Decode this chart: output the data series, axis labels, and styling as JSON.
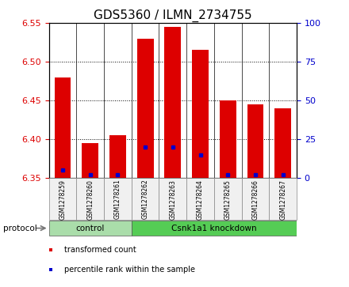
{
  "title": "GDS5360 / ILMN_2734755",
  "samples": [
    "GSM1278259",
    "GSM1278260",
    "GSM1278261",
    "GSM1278262",
    "GSM1278263",
    "GSM1278264",
    "GSM1278265",
    "GSM1278266",
    "GSM1278267"
  ],
  "transformed_counts": [
    6.48,
    6.395,
    6.405,
    6.53,
    6.545,
    6.515,
    6.45,
    6.445,
    6.44
  ],
  "percentile_ranks": [
    5,
    2,
    2,
    20,
    20,
    15,
    2,
    2,
    2
  ],
  "ylim_left": [
    6.35,
    6.55
  ],
  "yticks_left": [
    6.35,
    6.4,
    6.45,
    6.5,
    6.55
  ],
  "yticks_right": [
    0,
    25,
    50,
    75,
    100
  ],
  "ylim_right": [
    0,
    100
  ],
  "bar_color_red": "#dd0000",
  "bar_color_blue": "#0000cc",
  "protocol_groups": [
    {
      "label": "control",
      "start": 0,
      "end": 3,
      "color": "#aaddaa"
    },
    {
      "label": "Csnk1a1 knockdown",
      "start": 3,
      "end": 9,
      "color": "#55cc55"
    }
  ],
  "protocol_label": "protocol",
  "legend_items": [
    {
      "label": "transformed count",
      "color": "#dd0000"
    },
    {
      "label": "percentile rank within the sample",
      "color": "#0000cc"
    }
  ],
  "title_fontsize": 11,
  "tick_label_color_left": "#dd0000",
  "tick_label_color_right": "#0000cc",
  "bar_width": 0.6,
  "base_value": 6.35,
  "bg_color": "#f0f0f0"
}
